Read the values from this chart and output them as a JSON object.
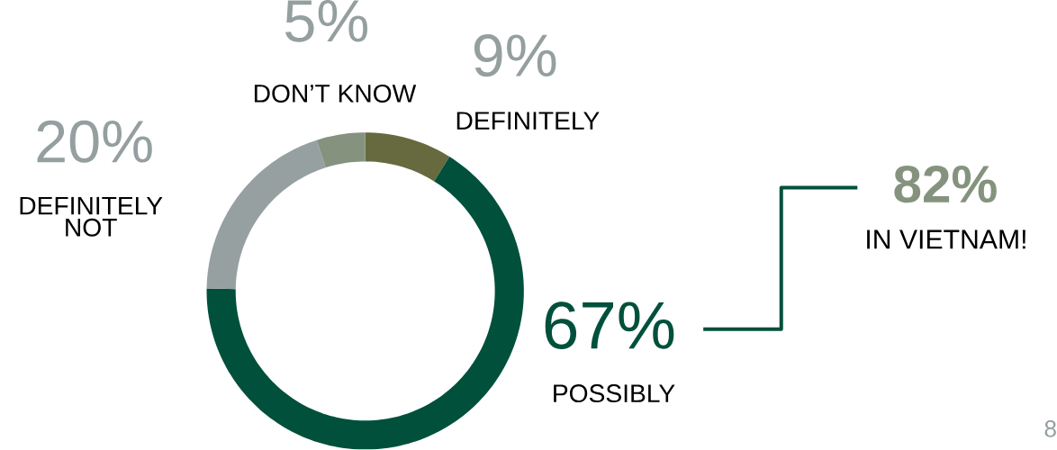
{
  "chart_data": {
    "type": "donut",
    "categories": [
      "DEFINITELY",
      "POSSIBLY",
      "DEFINITELY NOT",
      "DON’T KNOW"
    ],
    "values": [
      9,
      67,
      20,
      5
    ],
    "colors": [
      "#666a3e",
      "#00503c",
      "#97a0a1",
      "#85937e"
    ],
    "value_labels": [
      "9%",
      "67%",
      "20%",
      "5%"
    ],
    "annotations": [
      "82%",
      "IN VIETNAM!",
      "8"
    ]
  }
}
